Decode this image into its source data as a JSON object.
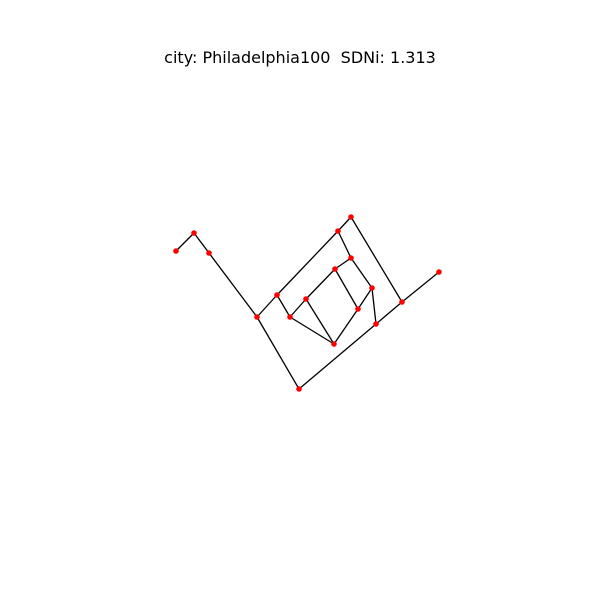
{
  "title": "city: Philadelphia100  SDNi: 1.313",
  "colors": {
    "node": "#ff0000",
    "edge": "#000000",
    "background": "#ffffff"
  },
  "graph": {
    "nodes": [
      {
        "id": "n0"
      },
      {
        "id": "n1"
      },
      {
        "id": "n2"
      },
      {
        "id": "n3"
      },
      {
        "id": "n4"
      },
      {
        "id": "n5"
      },
      {
        "id": "n6"
      },
      {
        "id": "n7"
      },
      {
        "id": "n8"
      },
      {
        "id": "n9"
      },
      {
        "id": "n10"
      },
      {
        "id": "n11"
      },
      {
        "id": "n12"
      },
      {
        "id": "n13"
      },
      {
        "id": "n14"
      },
      {
        "id": "n15"
      },
      {
        "id": "n16"
      },
      {
        "id": "n17"
      }
    ],
    "edges": [
      [
        "n0",
        "n1"
      ],
      [
        "n1",
        "n2"
      ],
      [
        "n2",
        "n3"
      ],
      [
        "n3",
        "n4"
      ],
      [
        "n3",
        "n5"
      ],
      [
        "n4",
        "n6"
      ],
      [
        "n6",
        "n7"
      ],
      [
        "n7",
        "n8"
      ],
      [
        "n8",
        "n9"
      ],
      [
        "n9",
        "n10"
      ],
      [
        "n10",
        "n11"
      ],
      [
        "n11",
        "n12"
      ],
      [
        "n12",
        "n13"
      ],
      [
        "n13",
        "n5"
      ],
      [
        "n13",
        "n14"
      ],
      [
        "n14",
        "n4"
      ],
      [
        "n14",
        "n15"
      ],
      [
        "n15",
        "n16"
      ],
      [
        "n16",
        "n17"
      ],
      [
        "n17",
        "n15"
      ],
      [
        "n16",
        "n6"
      ],
      [
        "n16",
        "n12"
      ],
      [
        "n12",
        "n9"
      ],
      [
        "n10",
        "n8"
      ]
    ]
  }
}
